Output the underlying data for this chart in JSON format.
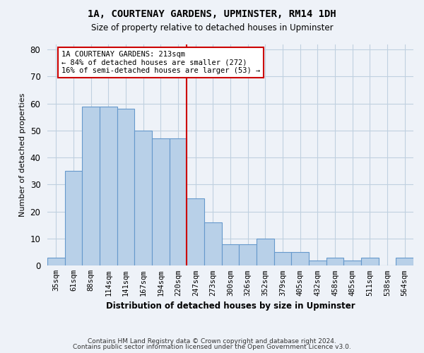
{
  "title": "1A, COURTENAY GARDENS, UPMINSTER, RM14 1DH",
  "subtitle": "Size of property relative to detached houses in Upminster",
  "xlabel": "Distribution of detached houses by size in Upminster",
  "ylabel": "Number of detached properties",
  "categories": [
    "35sqm",
    "61sqm",
    "88sqm",
    "114sqm",
    "141sqm",
    "167sqm",
    "194sqm",
    "220sqm",
    "247sqm",
    "273sqm",
    "300sqm",
    "326sqm",
    "352sqm",
    "379sqm",
    "405sqm",
    "432sqm",
    "458sqm",
    "485sqm",
    "511sqm",
    "538sqm",
    "564sqm"
  ],
  "values": [
    3,
    35,
    59,
    59,
    58,
    50,
    47,
    47,
    25,
    16,
    8,
    8,
    10,
    5,
    5,
    2,
    3,
    2,
    3,
    0,
    3
  ],
  "bar_color": "#b8d0e8",
  "bar_edge_color": "#6699cc",
  "grid_color": "#c0d0e0",
  "background_color": "#eef2f8",
  "red_line_x": 7.5,
  "annotation_title": "1A COURTENAY GARDENS: 213sqm",
  "annotation_line1": "← 84% of detached houses are smaller (272)",
  "annotation_line2": "16% of semi-detached houses are larger (53) →",
  "annotation_box_color": "#ffffff",
  "annotation_box_edge": "#cc0000",
  "red_line_color": "#cc0000",
  "footer1": "Contains HM Land Registry data © Crown copyright and database right 2024.",
  "footer2": "Contains public sector information licensed under the Open Government Licence v3.0.",
  "ylim": [
    0,
    82
  ],
  "yticks": [
    0,
    10,
    20,
    30,
    40,
    50,
    60,
    70,
    80
  ]
}
